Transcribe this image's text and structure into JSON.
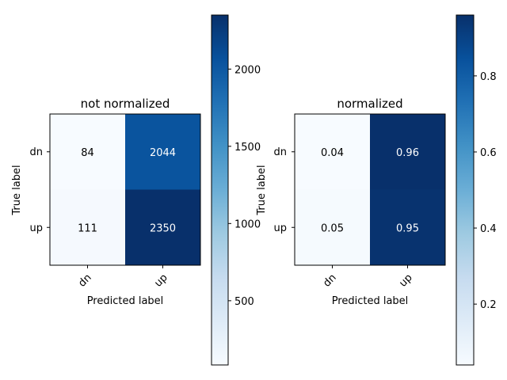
{
  "colors": {
    "cmap_low": "#f7fbff",
    "cmap_high": "#08306b",
    "text_dark": "#000000",
    "text_light": "#ffffff"
  },
  "chart_data": [
    {
      "type": "heatmap",
      "title": "not normalized",
      "xlabel": "Predicted label",
      "ylabel": "True label",
      "x_categories": [
        "dn",
        "up"
      ],
      "y_categories": [
        "dn",
        "up"
      ],
      "values": [
        [
          84,
          2044
        ],
        [
          111,
          2350
        ]
      ],
      "cell_labels": [
        [
          "84",
          "2044"
        ],
        [
          "111",
          "2350"
        ]
      ],
      "colorbar": {
        "vmin": 84,
        "vmax": 2350,
        "ticks": [
          500,
          1000,
          1500,
          2000
        ],
        "tick_labels": [
          "500",
          "1000",
          "1500",
          "2000"
        ]
      },
      "cmap": "Blues"
    },
    {
      "type": "heatmap",
      "title": "normalized",
      "xlabel": "Predicted label",
      "ylabel": "True label",
      "x_categories": [
        "dn",
        "up"
      ],
      "y_categories": [
        "dn",
        "up"
      ],
      "values": [
        [
          0.04,
          0.96
        ],
        [
          0.05,
          0.95
        ]
      ],
      "cell_labels": [
        [
          "0.04",
          "0.96"
        ],
        [
          "0.05",
          "0.95"
        ]
      ],
      "colorbar": {
        "vmin": 0.04,
        "vmax": 0.96,
        "ticks": [
          0.2,
          0.4,
          0.6,
          0.8
        ],
        "tick_labels": [
          "0.2",
          "0.4",
          "0.6",
          "0.8"
        ]
      },
      "cmap": "Blues"
    }
  ]
}
